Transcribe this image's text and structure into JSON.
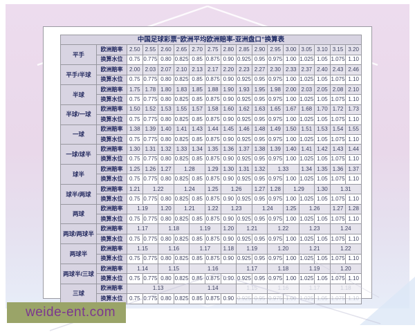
{
  "page": {
    "watermark": "weide-ent.com",
    "colors": {
      "backdrop_pink": "#e9d8ea",
      "backdrop_blue": "#e7edf8",
      "header_cell": "#d8d4e2",
      "odds_cell": "#e5e3ec",
      "water_cell": "#ffffff",
      "border": "#97979f",
      "text_navy": "#242a60",
      "watermark_bar": "#9aa468",
      "watermark_text": "#7b3790"
    }
  },
  "table": {
    "title": "中国足球彩票“欧洲平均欧洲赔率-亚洲盘口”换算表",
    "row_header_odds": "欧洲赔率",
    "row_header_water": "换算水位",
    "water_values": [
      "0.75",
      "0.775",
      "0.80",
      "0.825",
      "0.85",
      "0.875",
      "0.90",
      "0.925",
      "0.95",
      "0.975",
      "1.00",
      "1.025",
      "1.05",
      "1.075",
      "1.10"
    ],
    "groups": [
      {
        "handicap": "平手",
        "odds": [
          "2.50",
          "2.55",
          "2.60",
          "2.65",
          "2.70",
          "2.75",
          "2.80",
          "2.85",
          "2.90",
          "2.95",
          "3.00",
          "3.05",
          "3.10",
          "3.15",
          "3.20"
        ]
      },
      {
        "handicap": "平手/半球",
        "odds": [
          "2.00",
          "2.03",
          "2.07",
          "2.10",
          "2.13",
          "2.17",
          "2.20",
          "2.23",
          "2.27",
          "2.30",
          "2.33",
          "2.37",
          "2.40",
          "2.43",
          "2.46"
        ]
      },
      {
        "handicap": "半球",
        "odds": [
          "1.75",
          "1.78",
          "1.80",
          "1.83",
          "1.85",
          "1.88",
          "1.90",
          "1.93",
          "1.95",
          "1.98",
          "2.00",
          "2.03",
          "2.05",
          "2.08",
          "2.10"
        ]
      },
      {
        "handicap": "半球/一球",
        "odds": [
          "1.50",
          "1.52",
          "1.53",
          "1.55",
          "1.57",
          "1.58",
          "1.60",
          "1.62",
          "1.63",
          "1.65",
          "1.67",
          "1.68",
          "1.70",
          "1.72",
          "1.73"
        ]
      },
      {
        "handicap": "一球",
        "odds": [
          "1.38",
          "1.39",
          "1.40",
          "1.41",
          "1.43",
          "1.44",
          "1.45",
          "1.46",
          "1.48",
          "1.49",
          "1.50",
          "1.51",
          "1.53",
          "1.54",
          "1.55"
        ]
      },
      {
        "handicap": "一球/球半",
        "odds": [
          "1.30",
          "1.31",
          "1.32",
          "1.33",
          "1.34",
          "1.35",
          "1.36",
          "1.37",
          "1.38",
          "1.39",
          "1.40",
          "1.41",
          "1.42",
          "1.43",
          "1.44"
        ]
      },
      {
        "handicap": "球半",
        "odds": [
          "1.25",
          "1.26",
          "1.27",
          {
            "v": "1.28",
            "s": 2
          },
          "1.29",
          "1.30",
          "1.31",
          "1.32",
          {
            "v": "1.33",
            "s": 2
          },
          "1.34",
          "1.35",
          "1.36",
          "1.37"
        ]
      },
      {
        "handicap": "球半/两球",
        "odds": [
          "1.21",
          {
            "v": "1.22",
            "s": 2
          },
          {
            "v": "1.24",
            "s": 2
          },
          "1.25",
          {
            "v": "1.26",
            "s": 2
          },
          "1.27",
          "1.28",
          {
            "v": "1.29",
            "s": 2
          },
          "1.30",
          {
            "v": "1.31",
            "s": 2
          }
        ]
      },
      {
        "handicap": "两球",
        "odds": [
          {
            "v": "1.19",
            "s": 2
          },
          "1.20",
          {
            "v": "1.21",
            "s": 2
          },
          "1.22",
          {
            "v": "1.23",
            "s": 2
          },
          {
            "v": "1.24",
            "s": 2
          },
          "1.25",
          {
            "v": "1.26",
            "s": 2
          },
          "1.27",
          "1.28"
        ]
      },
      {
        "handicap": "两球/两球半",
        "odds": [
          {
            "v": "1.17",
            "s": 2
          },
          {
            "v": "1.18",
            "s": 2
          },
          {
            "v": "1.19",
            "s": 2
          },
          "1.20",
          {
            "v": "1.21",
            "s": 2
          },
          {
            "v": "1.22",
            "s": 2
          },
          {
            "v": "1.23",
            "s": 2
          },
          {
            "v": "1.24",
            "s": 2
          }
        ]
      },
      {
        "handicap": "两球半",
        "odds": [
          {
            "v": "1.15",
            "s": 2
          },
          {
            "v": "1.16",
            "s": 2
          },
          {
            "v": "1.17",
            "s": 2
          },
          "1.18",
          {
            "v": "1.19",
            "s": 2
          },
          {
            "v": "1.20",
            "s": 2
          },
          {
            "v": "1.21",
            "s": 2
          },
          {
            "v": "1.22",
            "s": 2
          }
        ]
      },
      {
        "handicap": "两球半/三球",
        "odds": [
          {
            "v": "1.14",
            "s": 2
          },
          {
            "v": "1.15",
            "s": 2
          },
          {
            "v": "1.16",
            "s": 3
          },
          {
            "v": "1.17",
            "s": 2
          },
          {
            "v": "1.18",
            "s": 2
          },
          {
            "v": "1.19",
            "s": 2
          },
          {
            "v": "1.20",
            "s": 2
          }
        ]
      },
      {
        "handicap": "三球",
        "water_faded_from": 7,
        "odds": [
          {
            "v": "1.13",
            "s": 4
          },
          {
            "v": "1.14",
            "s": 3
          },
          {
            "v": "1.15",
            "s": 2,
            "f": 1
          },
          {
            "v": "1.16",
            "s": 2,
            "f": 1
          },
          {
            "v": "1.17",
            "s": 2,
            "f": 1
          },
          {
            "v": "1.18",
            "s": 2,
            "f": 1
          }
        ]
      }
    ]
  }
}
